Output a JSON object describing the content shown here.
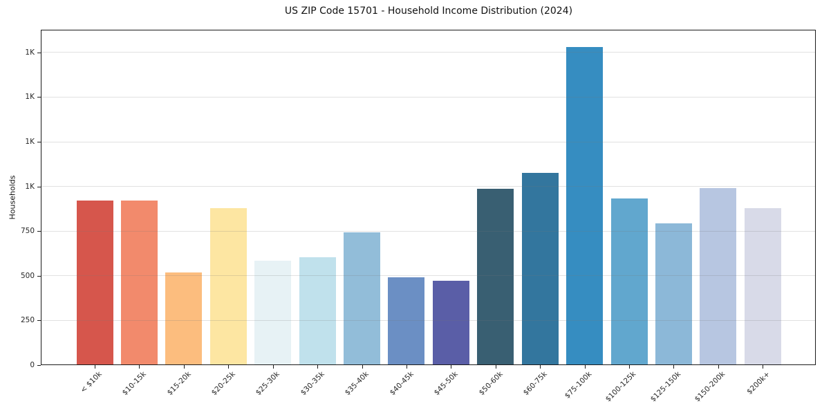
{
  "page": {
    "background_color": "#ffffff",
    "axis_color": "#1a1a1a",
    "grid_color": "rgba(120,120,120,0.22)"
  },
  "chart_data": {
    "type": "bar",
    "title": "US ZIP Code 15701 - Household Income Distribution (2024)",
    "xlabel": "",
    "ylabel": "Households",
    "categories": [
      "< $10k",
      "$10-15k",
      "$15-20k",
      "$20-25k",
      "$25-30k",
      "$30-35k",
      "$35-40k",
      "$40-45k",
      "$45-50k",
      "$50-60k",
      "$60-75k",
      "$75-100k",
      "$100-125k",
      "$125-150k",
      "$150-200k",
      "$200k+"
    ],
    "values": [
      920,
      920,
      520,
      878,
      585,
      605,
      743,
      490,
      472,
      988,
      1075,
      1780,
      932,
      793,
      990,
      880
    ],
    "colors": [
      "#d6564c",
      "#f28a6c",
      "#fcbd7e",
      "#fde6a2",
      "#e7f2f5",
      "#c0e1ec",
      "#92bdd9",
      "#6b8fc4",
      "#5a5ea7",
      "#395f72",
      "#33769e",
      "#368dc1",
      "#61a7ce",
      "#8cb8d8",
      "#b7c6e1",
      "#d8dae8"
    ],
    "ylim": [
      0,
      1877
    ],
    "yticks": [
      {
        "value": 0,
        "label": "0"
      },
      {
        "value": 250,
        "label": "250"
      },
      {
        "value": 500,
        "label": "500"
      },
      {
        "value": 750,
        "label": "750"
      },
      {
        "value": 1000,
        "label": "1K"
      },
      {
        "value": 1250,
        "label": "1K"
      },
      {
        "value": 1500,
        "label": "1K"
      },
      {
        "value": 1750,
        "label": "1K"
      }
    ],
    "grid": "horizontal",
    "legend": "none",
    "bar_edge": "none"
  }
}
